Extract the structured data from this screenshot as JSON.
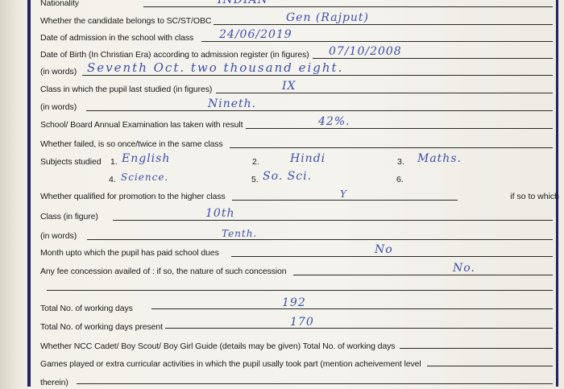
{
  "form": {
    "nationality": {
      "label": "Nationality",
      "value": "INDIAN"
    },
    "category": {
      "label": "Whether the candidate belongs to SC/ST/OBC",
      "value": "Gen (Rajput)"
    },
    "admission_date": {
      "label": "Date of admission in the school with class",
      "value": "24/06/2019"
    },
    "dob_figures": {
      "label": "Date of Birth (In Christian Era) according to admission register (in figures)",
      "value": "07/10/2008"
    },
    "dob_words": {
      "label": "(in words)",
      "value": "Seventh Oct. two thousand eight."
    },
    "last_class_figures": {
      "label": "Class in which the pupil last studied (in figures)",
      "value": "IX"
    },
    "last_class_words": {
      "label": "(in words)",
      "value": "Nineth."
    },
    "exam_result": {
      "label": "School/ Board Annual Examination las taken with result",
      "value": "42%."
    },
    "failed": {
      "label": "Whether failed, is so once/twice in the same class",
      "value": ""
    },
    "subjects": {
      "label": "Subjects studied",
      "items": [
        {
          "num": "1.",
          "value": "English"
        },
        {
          "num": "2.",
          "value": "Hindi"
        },
        {
          "num": "3.",
          "value": "Maths."
        },
        {
          "num": "4.",
          "value": "Science."
        },
        {
          "num": "5.",
          "value": "So. Sci."
        },
        {
          "num": "6.",
          "value": ""
        }
      ]
    },
    "promotion": {
      "label": "Whether qualified for promotion to the higher class",
      "value": "Y",
      "tail": "if so to which"
    },
    "class_figure": {
      "label": "Class (in figure)",
      "value": "10th"
    },
    "class_words": {
      "label": "(in words)",
      "value": "Tenth."
    },
    "dues": {
      "label": "Month upto which the pupil has paid school dues",
      "value": "No"
    },
    "concession": {
      "label": "Any fee concession availed of : if so, the nature of such concession",
      "value": "No."
    },
    "working_days": {
      "label": "Total No. of working days",
      "value": "192"
    },
    "days_present": {
      "label": "Total No. of working days present",
      "value": "170"
    },
    "ncc": {
      "label": "Whether NCC Cadet/ Boy Scout/ Boy Girl Guide (details may be given) Total No. of working days",
      "value": ""
    },
    "games": {
      "label": "Games played or extra curricular activities in which the pupil usally took part (mention acheivement level",
      "label2": "therein)",
      "value": ""
    }
  },
  "colors": {
    "ink": "#3a4fa8",
    "border": "#1e2466"
  }
}
